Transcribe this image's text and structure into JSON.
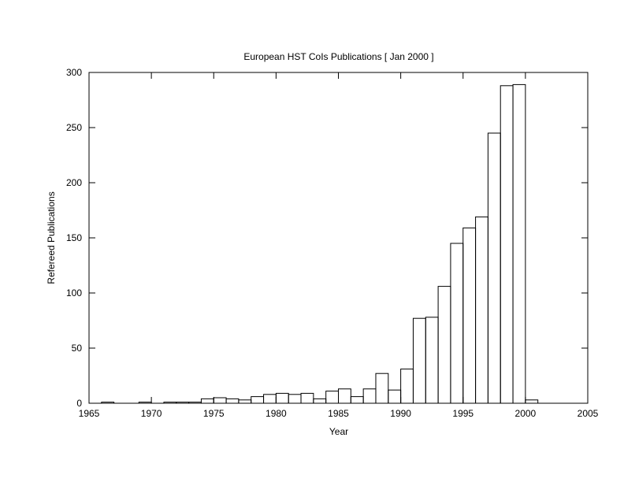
{
  "chart_data": {
    "type": "bar",
    "title": "European HST CoIs Publications [ Jan 2000 ]",
    "xlabel": "Year",
    "ylabel": "Refereed Publications",
    "xlim": [
      1965,
      2005
    ],
    "ylim": [
      0,
      300
    ],
    "x_ticks": [
      1965,
      1970,
      1975,
      1980,
      1985,
      1990,
      1995,
      2000,
      2005
    ],
    "y_ticks": [
      0,
      50,
      100,
      150,
      200,
      250,
      300
    ],
    "grid": false,
    "legend": "none",
    "bin_width": 1,
    "years": [
      1966,
      1967,
      1968,
      1969,
      1970,
      1971,
      1972,
      1973,
      1974,
      1975,
      1976,
      1977,
      1978,
      1979,
      1980,
      1981,
      1982,
      1983,
      1984,
      1985,
      1986,
      1987,
      1988,
      1989,
      1990,
      1991,
      1992,
      1993,
      1994,
      1995,
      1996,
      1997,
      1998,
      1999,
      2000
    ],
    "values": [
      1,
      0,
      0,
      1,
      0,
      1,
      1,
      1,
      4,
      5,
      4,
      3,
      6,
      8,
      9,
      8,
      9,
      4,
      11,
      13,
      6,
      13,
      27,
      12,
      31,
      77,
      78,
      106,
      145,
      159,
      169,
      245,
      288,
      289,
      3
    ]
  }
}
